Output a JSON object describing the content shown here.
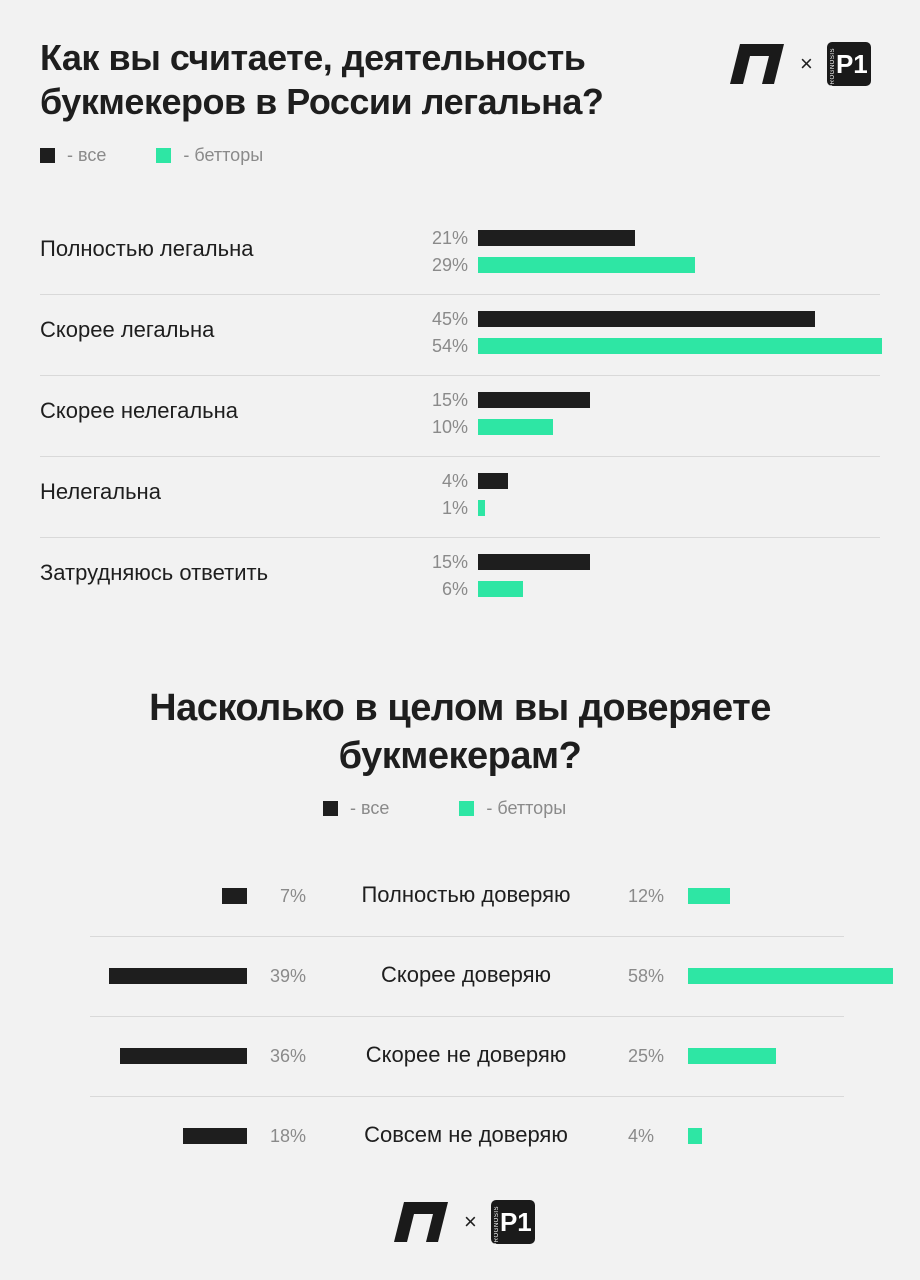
{
  "chart_data": [
    {
      "type": "bar",
      "orientation": "horizontal",
      "title_lines": [
        "Как вы считаете, деятельность",
        "букмекеров в России легальна?"
      ],
      "legend": [
        {
          "label": "- все",
          "color": "#1e1e1e"
        },
        {
          "label": "- бетторы",
          "color": "#2ee6a4"
        }
      ],
      "legend_position": "top-left",
      "categories": [
        "Полностью легальна",
        "Скорее легальна",
        "Скорее нелегальна",
        "Нелегальна",
        "Затрудняюсь ответить"
      ],
      "series": [
        {
          "values": [
            21,
            45,
            15,
            4,
            15
          ],
          "labels": [
            "21%",
            "45%",
            "15%",
            "4%",
            "15%"
          ],
          "color": "#1e1e1e"
        },
        {
          "values": [
            29,
            54,
            10,
            1,
            6
          ],
          "labels": [
            "29%",
            "54%",
            "10%",
            "1%",
            "6%"
          ],
          "color": "#2ee6a4"
        }
      ],
      "xlim": [
        0,
        54
      ],
      "grid": false
    },
    {
      "type": "bar",
      "orientation": "diverging-horizontal",
      "title_lines": [
        "Насколько в целом вы доверяете",
        "букмекерам?"
      ],
      "legend": [
        {
          "label": "- все",
          "color": "#1e1e1e"
        },
        {
          "label": "- бетторы",
          "color": "#2ee6a4"
        }
      ],
      "legend_position": "top-center",
      "categories": [
        "Полностью доверяю",
        "Скорее доверяю",
        "Скорее не доверяю",
        "Совсем не доверяю"
      ],
      "series": [
        {
          "values": [
            7,
            39,
            36,
            18
          ],
          "labels": [
            "7%",
            "39%",
            "36%",
            "18%"
          ],
          "color": "#1e1e1e",
          "side": "left"
        },
        {
          "values": [
            12,
            58,
            25,
            4
          ],
          "labels": [
            "12%",
            "58%",
            "25%",
            "4%"
          ],
          "color": "#2ee6a4",
          "side": "right"
        }
      ],
      "grid": false
    }
  ],
  "logos": {
    "times": "×",
    "p1_main": "P1",
    "p1_side": "PROGNOSIS"
  }
}
